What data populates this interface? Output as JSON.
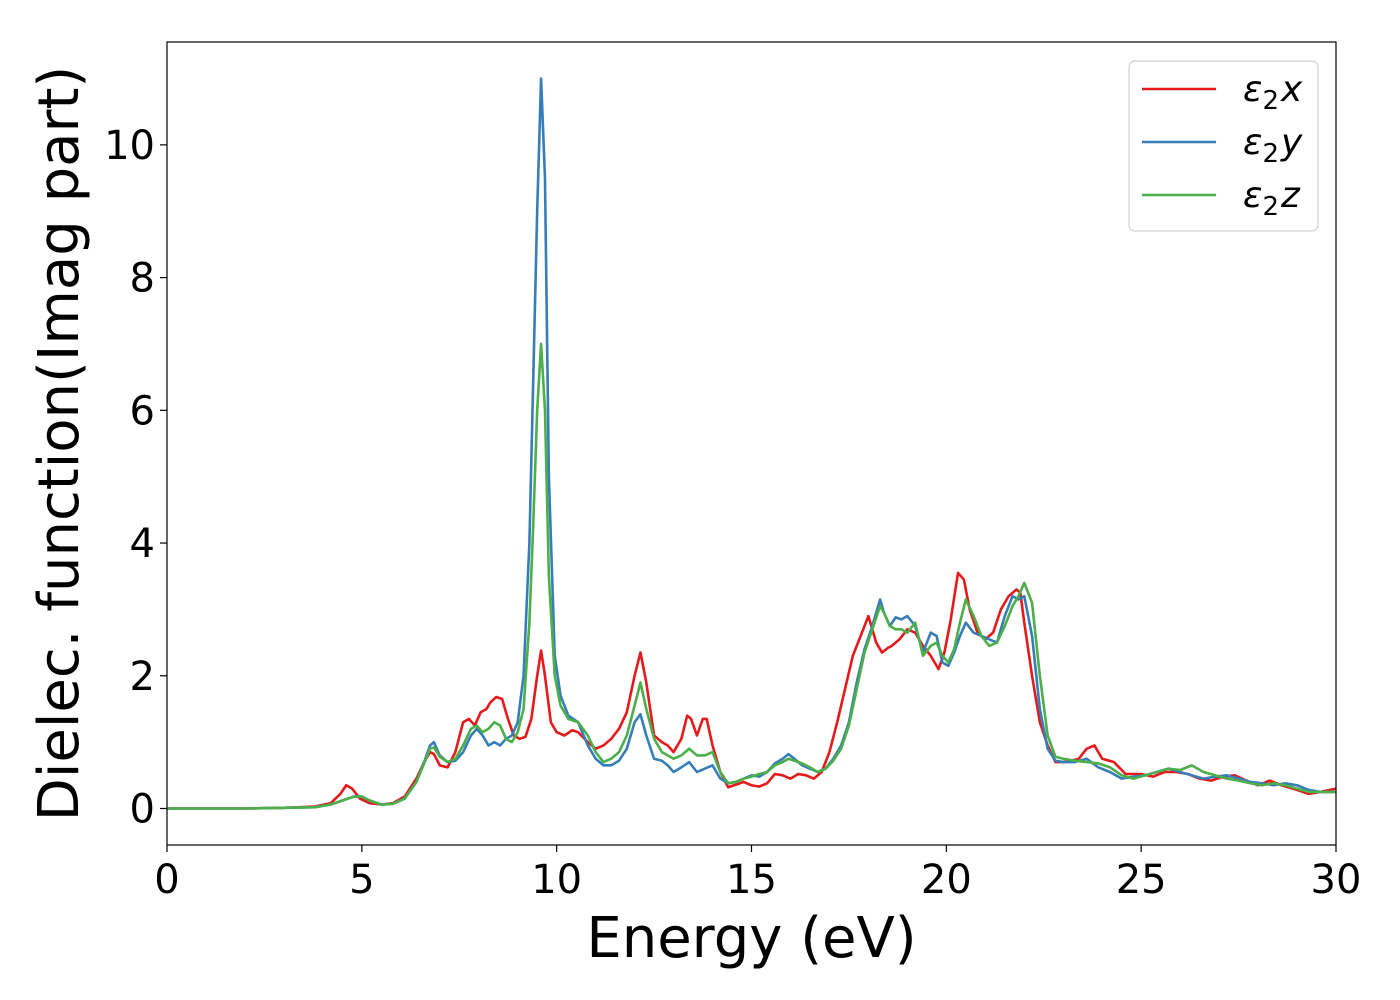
{
  "chart_data": {
    "type": "line",
    "title": "",
    "xlabel": "Energy (eV)",
    "ylabel": "Dielec. function(Imag part)",
    "xlim": [
      0,
      30
    ],
    "ylim": [
      -0.55,
      11.55
    ],
    "xticks": [
      0,
      5,
      10,
      15,
      20,
      25,
      30
    ],
    "yticks": [
      0,
      2,
      4,
      6,
      8,
      10
    ],
    "grid": false,
    "legend_position": "top-right",
    "series": [
      {
        "name": "ε2x",
        "legend": {
          "base": "ε",
          "sub": "2",
          "tail": "x"
        },
        "color": "#e41a1c",
        "x": [
          0,
          1,
          2,
          3,
          3.8,
          4.2,
          4.45,
          4.6,
          4.75,
          4.95,
          5.2,
          5.5,
          5.8,
          6.1,
          6.4,
          6.6,
          6.75,
          6.85,
          7.0,
          7.2,
          7.4,
          7.6,
          7.75,
          7.9,
          8.05,
          8.2,
          8.3,
          8.45,
          8.6,
          8.75,
          8.9,
          9.05,
          9.2,
          9.35,
          9.5,
          9.6,
          9.7,
          9.85,
          10.0,
          10.2,
          10.4,
          10.55,
          10.8,
          11.0,
          11.2,
          11.4,
          11.6,
          11.8,
          12.0,
          12.15,
          12.3,
          12.5,
          12.7,
          12.85,
          13.0,
          13.2,
          13.35,
          13.45,
          13.6,
          13.75,
          13.85,
          14.0,
          14.2,
          14.4,
          14.6,
          14.8,
          15.0,
          15.2,
          15.4,
          15.6,
          15.8,
          16.0,
          16.2,
          16.4,
          16.6,
          16.8,
          17.0,
          17.2,
          17.4,
          17.6,
          17.8,
          18.0,
          18.2,
          18.35,
          18.5,
          18.6,
          18.8,
          19.0,
          19.2,
          19.4,
          19.6,
          19.8,
          19.95,
          20.1,
          20.3,
          20.45,
          20.6,
          20.8,
          21.0,
          21.2,
          21.4,
          21.6,
          21.8,
          21.9,
          22.0,
          22.2,
          22.4,
          22.6,
          22.8,
          23.0,
          23.2,
          23.4,
          23.6,
          23.8,
          24.0,
          24.3,
          24.6,
          25.0,
          25.3,
          25.6,
          25.9,
          26.2,
          26.5,
          26.8,
          27.1,
          27.4,
          27.7,
          28.0,
          28.3,
          28.6,
          29.0,
          29.3,
          29.6,
          30.0
        ],
        "y": [
          0.0,
          0.0,
          0.0,
          0.01,
          0.03,
          0.08,
          0.22,
          0.35,
          0.3,
          0.15,
          0.08,
          0.06,
          0.08,
          0.18,
          0.45,
          0.7,
          0.85,
          0.82,
          0.65,
          0.62,
          0.85,
          1.3,
          1.35,
          1.25,
          1.45,
          1.5,
          1.6,
          1.68,
          1.65,
          1.35,
          1.1,
          1.05,
          1.08,
          1.35,
          2.0,
          2.38,
          2.0,
          1.3,
          1.15,
          1.1,
          1.18,
          1.15,
          1.0,
          0.9,
          0.95,
          1.05,
          1.2,
          1.45,
          2.0,
          2.35,
          1.9,
          1.1,
          1.0,
          0.95,
          0.85,
          1.05,
          1.4,
          1.35,
          1.1,
          1.35,
          1.35,
          0.95,
          0.55,
          0.32,
          0.36,
          0.4,
          0.35,
          0.33,
          0.38,
          0.52,
          0.5,
          0.45,
          0.52,
          0.5,
          0.45,
          0.55,
          0.85,
          1.3,
          1.8,
          2.3,
          2.6,
          2.9,
          2.5,
          2.35,
          2.42,
          2.45,
          2.55,
          2.7,
          2.65,
          2.45,
          2.3,
          2.1,
          2.35,
          2.8,
          3.55,
          3.45,
          3.0,
          2.65,
          2.55,
          2.65,
          3.0,
          3.2,
          3.3,
          3.25,
          2.8,
          2.0,
          1.3,
          0.95,
          0.7,
          0.7,
          0.72,
          0.75,
          0.9,
          0.95,
          0.75,
          0.7,
          0.52,
          0.52,
          0.48,
          0.55,
          0.55,
          0.52,
          0.45,
          0.42,
          0.48,
          0.5,
          0.42,
          0.35,
          0.42,
          0.35,
          0.28,
          0.22,
          0.25,
          0.3
        ]
      },
      {
        "name": "ε2y",
        "legend": {
          "base": "ε",
          "sub": "2",
          "tail": "y"
        },
        "color": "#377eb8",
        "x": [
          0,
          1,
          2,
          3,
          3.8,
          4.2,
          4.5,
          4.8,
          5.0,
          5.2,
          5.5,
          5.8,
          6.1,
          6.4,
          6.6,
          6.75,
          6.85,
          7.0,
          7.2,
          7.4,
          7.6,
          7.8,
          7.95,
          8.1,
          8.25,
          8.4,
          8.55,
          8.7,
          8.85,
          9.0,
          9.15,
          9.3,
          9.4,
          9.5,
          9.6,
          9.7,
          9.8,
          9.95,
          10.1,
          10.3,
          10.55,
          10.8,
          11.0,
          11.2,
          11.4,
          11.6,
          11.8,
          12.0,
          12.15,
          12.3,
          12.5,
          12.7,
          12.85,
          13.0,
          13.2,
          13.4,
          13.6,
          13.8,
          14.0,
          14.2,
          14.4,
          14.6,
          14.8,
          15.0,
          15.2,
          15.4,
          15.6,
          15.8,
          15.95,
          16.1,
          16.3,
          16.5,
          16.7,
          16.9,
          17.1,
          17.3,
          17.5,
          17.7,
          17.9,
          18.1,
          18.3,
          18.4,
          18.55,
          18.7,
          18.85,
          19.0,
          19.2,
          19.4,
          19.6,
          19.75,
          19.9,
          20.05,
          20.2,
          20.35,
          20.5,
          20.7,
          20.9,
          21.1,
          21.3,
          21.5,
          21.7,
          21.85,
          22.0,
          22.2,
          22.4,
          22.6,
          22.8,
          23.0,
          23.3,
          23.6,
          23.9,
          24.2,
          24.5,
          24.8,
          25.1,
          25.4,
          25.7,
          26.0,
          26.3,
          26.6,
          26.9,
          27.2,
          27.5,
          27.8,
          28.1,
          28.4,
          28.7,
          29.0,
          29.3,
          29.6,
          30.0
        ],
        "y": [
          0.0,
          0.0,
          0.0,
          0.01,
          0.02,
          0.06,
          0.12,
          0.18,
          0.18,
          0.12,
          0.06,
          0.07,
          0.15,
          0.4,
          0.7,
          0.95,
          1.0,
          0.8,
          0.7,
          0.72,
          0.85,
          1.1,
          1.2,
          1.1,
          0.95,
          1.0,
          0.95,
          1.05,
          1.1,
          1.3,
          2.0,
          4.0,
          6.5,
          9.0,
          11.0,
          9.5,
          5.0,
          2.3,
          1.7,
          1.4,
          1.3,
          0.95,
          0.75,
          0.65,
          0.65,
          0.72,
          0.9,
          1.3,
          1.42,
          1.1,
          0.75,
          0.72,
          0.65,
          0.55,
          0.62,
          0.7,
          0.55,
          0.6,
          0.65,
          0.45,
          0.38,
          0.4,
          0.45,
          0.5,
          0.48,
          0.55,
          0.68,
          0.75,
          0.82,
          0.75,
          0.65,
          0.6,
          0.55,
          0.6,
          0.75,
          0.95,
          1.3,
          1.9,
          2.4,
          2.75,
          3.15,
          2.95,
          2.75,
          2.88,
          2.85,
          2.9,
          2.75,
          2.35,
          2.65,
          2.6,
          2.2,
          2.15,
          2.35,
          2.6,
          2.8,
          2.65,
          2.6,
          2.55,
          2.5,
          2.9,
          3.2,
          3.15,
          3.2,
          2.6,
          1.5,
          0.9,
          0.72,
          0.7,
          0.7,
          0.75,
          0.62,
          0.55,
          0.45,
          0.48,
          0.5,
          0.55,
          0.6,
          0.55,
          0.5,
          0.45,
          0.48,
          0.5,
          0.45,
          0.4,
          0.38,
          0.35,
          0.38,
          0.35,
          0.28,
          0.25,
          0.25
        ]
      },
      {
        "name": "ε2z",
        "legend": {
          "base": "ε",
          "sub": "2",
          "tail": "z"
        },
        "color": "#4daf4a",
        "x": [
          0,
          1,
          2,
          3,
          3.8,
          4.2,
          4.5,
          4.8,
          5.0,
          5.2,
          5.5,
          5.8,
          6.1,
          6.4,
          6.6,
          6.75,
          6.85,
          7.0,
          7.2,
          7.4,
          7.6,
          7.8,
          7.95,
          8.1,
          8.25,
          8.4,
          8.55,
          8.7,
          8.85,
          9.0,
          9.15,
          9.3,
          9.4,
          9.5,
          9.6,
          9.7,
          9.8,
          9.95,
          10.1,
          10.3,
          10.55,
          10.8,
          11.0,
          11.2,
          11.4,
          11.6,
          11.8,
          12.0,
          12.15,
          12.3,
          12.5,
          12.7,
          12.85,
          13.0,
          13.2,
          13.4,
          13.6,
          13.8,
          14.0,
          14.2,
          14.4,
          14.6,
          14.8,
          15.0,
          15.2,
          15.4,
          15.6,
          15.8,
          15.95,
          16.1,
          16.3,
          16.5,
          16.7,
          16.9,
          17.1,
          17.3,
          17.5,
          17.7,
          17.9,
          18.1,
          18.3,
          18.4,
          18.55,
          18.7,
          18.85,
          19.0,
          19.2,
          19.4,
          19.6,
          19.75,
          19.9,
          20.05,
          20.2,
          20.35,
          20.5,
          20.7,
          20.9,
          21.1,
          21.3,
          21.5,
          21.7,
          21.85,
          22.0,
          22.2,
          22.4,
          22.6,
          22.8,
          23.0,
          23.3,
          23.6,
          23.9,
          24.2,
          24.5,
          24.8,
          25.1,
          25.4,
          25.7,
          26.0,
          26.3,
          26.6,
          26.9,
          27.2,
          27.5,
          27.8,
          28.1,
          28.4,
          28.7,
          29.0,
          29.3,
          29.6,
          30.0
        ],
        "y": [
          0.0,
          0.0,
          0.0,
          0.01,
          0.02,
          0.06,
          0.12,
          0.18,
          0.18,
          0.12,
          0.06,
          0.07,
          0.15,
          0.4,
          0.68,
          0.9,
          0.92,
          0.78,
          0.7,
          0.75,
          0.95,
          1.2,
          1.25,
          1.15,
          1.2,
          1.3,
          1.25,
          1.05,
          1.0,
          1.15,
          1.5,
          2.8,
          4.3,
          6.0,
          7.0,
          6.0,
          3.5,
          2.0,
          1.55,
          1.35,
          1.3,
          1.1,
          0.85,
          0.7,
          0.75,
          0.85,
          1.1,
          1.55,
          1.9,
          1.5,
          1.05,
          0.85,
          0.8,
          0.75,
          0.8,
          0.9,
          0.8,
          0.8,
          0.85,
          0.55,
          0.38,
          0.4,
          0.45,
          0.48,
          0.52,
          0.55,
          0.65,
          0.7,
          0.75,
          0.72,
          0.68,
          0.62,
          0.55,
          0.6,
          0.72,
          0.9,
          1.25,
          1.8,
          2.35,
          2.7,
          3.05,
          2.95,
          2.75,
          2.7,
          2.7,
          2.65,
          2.8,
          2.3,
          2.45,
          2.5,
          2.3,
          2.2,
          2.4,
          2.8,
          3.15,
          2.9,
          2.6,
          2.45,
          2.5,
          2.75,
          3.05,
          3.2,
          3.4,
          3.1,
          2.0,
          1.1,
          0.78,
          0.75,
          0.72,
          0.7,
          0.68,
          0.62,
          0.5,
          0.45,
          0.5,
          0.55,
          0.6,
          0.58,
          0.65,
          0.55,
          0.5,
          0.45,
          0.42,
          0.38,
          0.35,
          0.38,
          0.35,
          0.3,
          0.25,
          0.25,
          0.25
        ]
      }
    ]
  }
}
